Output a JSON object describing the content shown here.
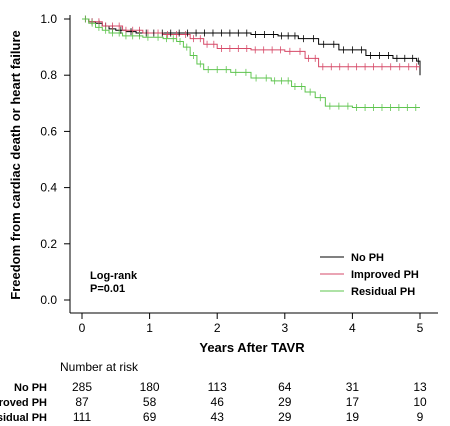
{
  "chart_data": {
    "type": "line",
    "subtype": "kaplan-meier",
    "title": "",
    "xlabel": "Years After TAVR",
    "ylabel": "Freedom from cardiac death or heart failure",
    "xlim": [
      0,
      5
    ],
    "ylim": [
      0,
      1
    ],
    "x_ticks": [
      "0",
      "1",
      "2",
      "3",
      "4",
      "5"
    ],
    "y_ticks": [
      "0.0",
      "0.2",
      "0.4",
      "0.6",
      "0.8",
      "1.0"
    ],
    "grid": false,
    "legend_position": "bottom-right",
    "annotation": {
      "line1": "Log-rank",
      "line2": "P=0.01"
    },
    "series": [
      {
        "name": "No PH",
        "color": "#000000",
        "points": [
          [
            0,
            1.0
          ],
          [
            0.1,
            0.99
          ],
          [
            0.2,
            0.985
          ],
          [
            0.3,
            0.975
          ],
          [
            0.4,
            0.965
          ],
          [
            0.5,
            0.96
          ],
          [
            0.65,
            0.955
          ],
          [
            0.8,
            0.95
          ],
          [
            1.0,
            0.95
          ],
          [
            1.5,
            0.95
          ],
          [
            2.0,
            0.95
          ],
          [
            2.5,
            0.945
          ],
          [
            2.9,
            0.94
          ],
          [
            3.2,
            0.93
          ],
          [
            3.5,
            0.91
          ],
          [
            3.8,
            0.89
          ],
          [
            4.2,
            0.87
          ],
          [
            4.6,
            0.86
          ],
          [
            4.95,
            0.85
          ],
          [
            5.0,
            0.8
          ]
        ]
      },
      {
        "name": "Improved PH",
        "color": "#d64a68",
        "points": [
          [
            0,
            1.0
          ],
          [
            0.1,
            0.99
          ],
          [
            0.3,
            0.975
          ],
          [
            0.6,
            0.96
          ],
          [
            0.9,
            0.95
          ],
          [
            1.2,
            0.945
          ],
          [
            1.6,
            0.93
          ],
          [
            1.8,
            0.91
          ],
          [
            2.0,
            0.895
          ],
          [
            2.5,
            0.89
          ],
          [
            3.0,
            0.885
          ],
          [
            3.3,
            0.86
          ],
          [
            3.5,
            0.83
          ],
          [
            4.0,
            0.83
          ],
          [
            4.5,
            0.83
          ],
          [
            4.9,
            0.83
          ],
          [
            5.0,
            0.83
          ]
        ]
      },
      {
        "name": "Residual PH",
        "color": "#5ec44e",
        "points": [
          [
            0,
            1.0
          ],
          [
            0.1,
            0.985
          ],
          [
            0.2,
            0.97
          ],
          [
            0.3,
            0.96
          ],
          [
            0.4,
            0.95
          ],
          [
            0.6,
            0.94
          ],
          [
            0.9,
            0.935
          ],
          [
            1.2,
            0.93
          ],
          [
            1.4,
            0.92
          ],
          [
            1.5,
            0.9
          ],
          [
            1.6,
            0.87
          ],
          [
            1.7,
            0.84
          ],
          [
            1.8,
            0.82
          ],
          [
            2.2,
            0.81
          ],
          [
            2.5,
            0.79
          ],
          [
            2.8,
            0.78
          ],
          [
            3.1,
            0.76
          ],
          [
            3.3,
            0.74
          ],
          [
            3.45,
            0.72
          ],
          [
            3.6,
            0.69
          ],
          [
            4.0,
            0.685
          ],
          [
            4.5,
            0.685
          ],
          [
            5.0,
            0.685
          ]
        ]
      }
    ],
    "risk_table": {
      "title": "Number at risk",
      "times": [
        0,
        1,
        2,
        3,
        4,
        5
      ],
      "rows": [
        {
          "label": "No PH",
          "values": [
            "285",
            "180",
            "113",
            "64",
            "31",
            "13"
          ]
        },
        {
          "label": "Improved PH",
          "values": [
            "87",
            "58",
            "46",
            "29",
            "17",
            "10"
          ]
        },
        {
          "label": "Residual PH",
          "values": [
            "111",
            "69",
            "43",
            "29",
            "19",
            "9"
          ]
        }
      ]
    }
  }
}
